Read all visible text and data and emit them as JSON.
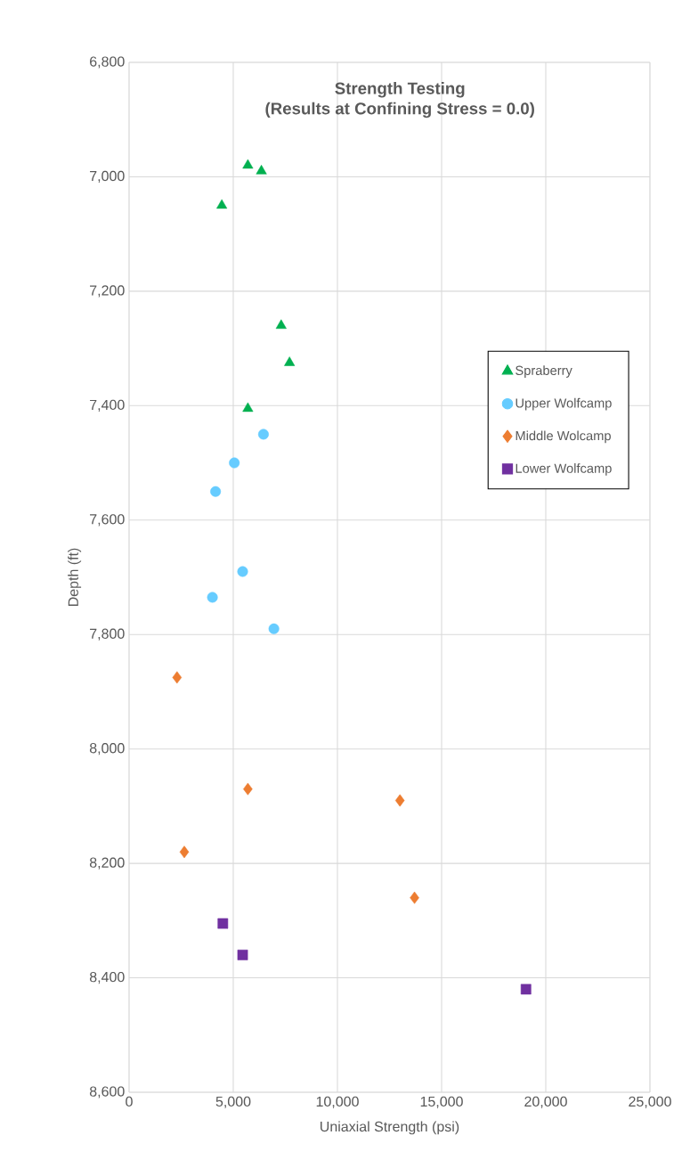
{
  "chart_data": {
    "type": "scatter",
    "title": "Strength Testing",
    "subtitle": "(Results at Confining Stress = 0.0)",
    "xlabel": "Uniaxial Strength (psi)",
    "ylabel": "Depth (ft)",
    "xlim": [
      0,
      25000
    ],
    "ylim": [
      8600,
      6800
    ],
    "xticks": [
      0,
      {
        "value": 5000,
        "label": "5,000"
      },
      {
        "value": 10000,
        "label": "10,000"
      },
      {
        "value": 15000,
        "label": "15,000"
      },
      {
        "value": 20000,
        "label": "20,000"
      },
      {
        "value": 25000,
        "label": "25,000"
      }
    ],
    "yticks": [
      {
        "value": 6800,
        "label": "6,800"
      },
      {
        "value": 7000,
        "label": "7,000"
      },
      {
        "value": 7200,
        "label": "7,200"
      },
      {
        "value": 7400,
        "label": "7,400"
      },
      {
        "value": 7600,
        "label": "7,600"
      },
      {
        "value": 7800,
        "label": "7,800"
      },
      {
        "value": 8000,
        "label": "8,000"
      },
      {
        "value": 8200,
        "label": "8,200"
      },
      {
        "value": 8400,
        "label": "8,400"
      },
      {
        "value": 8600,
        "label": "8,600"
      }
    ],
    "grid": true,
    "legend": "right",
    "series": [
      {
        "name": "Spraberry",
        "color": "#00b050",
        "marker": "triangle",
        "x": [
          5700,
          6350,
          4450,
          7300,
          7700,
          5700
        ],
        "values": [
          6980,
          6990,
          7050,
          7260,
          7325,
          7405
        ]
      },
      {
        "name": "Upper Wolfcamp",
        "color": "#66ccff",
        "marker": "circle",
        "x": [
          6450,
          5050,
          4150,
          5450,
          4000,
          6950
        ],
        "values": [
          7450,
          7500,
          7550,
          7690,
          7735,
          7790
        ]
      },
      {
        "name": "Middle Wolcamp",
        "color": "#ed7d31",
        "marker": "diamond",
        "x": [
          2300,
          5700,
          13000,
          2650,
          13700
        ],
        "values": [
          7875,
          8070,
          8090,
          8180,
          8260
        ]
      },
      {
        "name": "Lower Wolfcamp",
        "color": "#7030a0",
        "marker": "square",
        "x": [
          4500,
          5450,
          19050
        ],
        "values": [
          8305,
          8360,
          8420
        ]
      }
    ]
  }
}
